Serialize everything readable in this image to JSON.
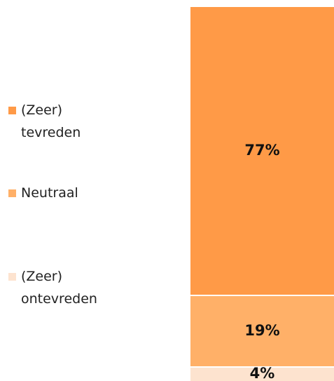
{
  "chart_data": {
    "type": "stacked-bar",
    "categories": [
      null
    ],
    "ylim": [
      0,
      100
    ],
    "series": [
      {
        "name": "(Zeer) tevreden",
        "color": "#ff9a47",
        "values": [
          77
        ],
        "value_labels": [
          "77%"
        ]
      },
      {
        "name": "Neutraal",
        "color": "#ffb068",
        "values": [
          19
        ],
        "value_labels": [
          "19%"
        ]
      },
      {
        "name": "(Zeer) ontevreden",
        "color": "#fde3cf",
        "values": [
          4
        ],
        "value_labels": [
          "4%"
        ]
      }
    ]
  }
}
